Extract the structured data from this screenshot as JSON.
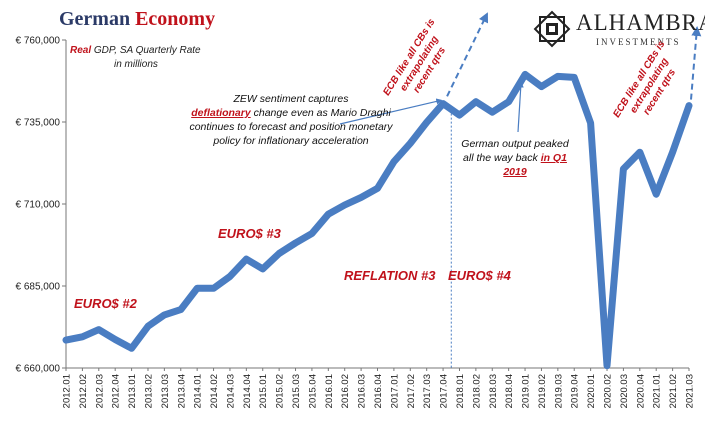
{
  "title": {
    "part1": "German",
    "part2": "Economy"
  },
  "subtitle": {
    "emph": "Real",
    "rest": "GDP, SA Quarterly Rate",
    "line2": "in millions"
  },
  "logo": {
    "brand": "ALHAMBRA",
    "sub": "INVESTMENTS",
    "icon": "star-grid-icon"
  },
  "annotations": {
    "zew": {
      "pre": "ZEW sentiment captures",
      "emph": "deflationary",
      "post": "change even as Mario Draghi continues to forecast and position monetary policy for inflationary acceleration"
    },
    "german": {
      "text": "German output peaked all the way back",
      "emph": "in Q1 2019"
    },
    "ecb1": {
      "line1": "ECB like all CBs is",
      "line2": "extrapolating",
      "line3": "recent qtrs"
    },
    "ecb2": {
      "line1": "ECB like all CBs is",
      "line2": "extrapolating",
      "line3": "recent qtrs"
    },
    "eras": {
      "euro2": "EURO$ #2",
      "euro3": "EURO$ #3",
      "reflation3": "REFLATION #3",
      "euro4": "EURO$ #4"
    }
  },
  "colors": {
    "line": "#4a7dc2",
    "accent": "#c0121b",
    "navy": "#2b3a67"
  },
  "chart_data": {
    "type": "line",
    "title": "German Economy",
    "subtitle": "Real GDP, SA Quarterly Rate in millions",
    "ylim": [
      660000,
      760000
    ],
    "yticks": [
      660000,
      685000,
      710000,
      735000,
      760000
    ],
    "ytick_labels": [
      "€ 660,000",
      "€ 685,000",
      "€ 710,000",
      "€ 735,000",
      "€ 760,000"
    ],
    "grid": false,
    "categories": [
      "2012.01",
      "2012.02",
      "2012.03",
      "2012.04",
      "2013.01",
      "2013.02",
      "2013.03",
      "2013.04",
      "2014.01",
      "2014.02",
      "2014.03",
      "2014.04",
      "2015.01",
      "2015.02",
      "2015.03",
      "2015.04",
      "2016.01",
      "2016.02",
      "2016.03",
      "2016.04",
      "2017.01",
      "2017.02",
      "2017.03",
      "2017.04",
      "2018.01",
      "2018.02",
      "2018.03",
      "2018.04",
      "2019.01",
      "2019.02",
      "2019.03",
      "2019.04",
      "2020.01",
      "2020.02",
      "2020.03",
      "2020.04",
      "2021.01",
      "2021.02",
      "2021.03"
    ],
    "values": [
      668500,
      669500,
      671700,
      668700,
      666000,
      672700,
      676200,
      677800,
      684300,
      684300,
      687900,
      693200,
      690200,
      694900,
      698100,
      701000,
      706900,
      709700,
      712000,
      714800,
      722900,
      728500,
      734900,
      740600,
      737100,
      741200,
      738000,
      741200,
      749500,
      745800,
      748900,
      748600,
      734700,
      660700,
      720700,
      725800,
      713000,
      725800,
      740000
    ],
    "reference_line": {
      "at": "2017.04",
      "style": "dashed"
    }
  }
}
